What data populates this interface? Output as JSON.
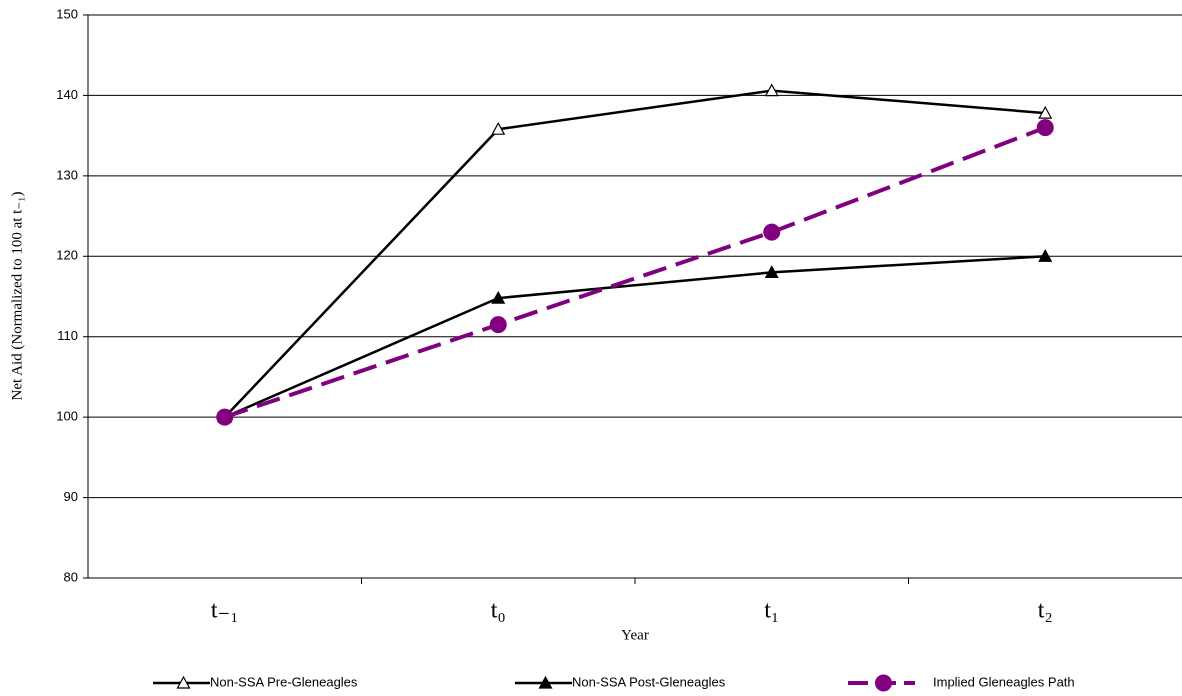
{
  "chart_data": {
    "type": "line",
    "ylabel": "Net Aid (Normalized to 100 at t₋₁)",
    "xlabel": "Year",
    "categories": [
      "t₋₁",
      "t₀",
      "t₁",
      "t₂"
    ],
    "series": [
      {
        "name": "Non-SSA Pre-Gleneagles",
        "color": "#000000",
        "dash": false,
        "marker": "triangle",
        "marker_fill": "#ffffff",
        "values": [
          100,
          135.8,
          140.6,
          137.8
        ]
      },
      {
        "name": "Non-SSA Post-Gleneagles",
        "color": "#000000",
        "dash": false,
        "marker": "triangle",
        "marker_fill": "#000000",
        "values": [
          100,
          114.8,
          118,
          120
        ]
      },
      {
        "name": "Implied Gleneagles Path",
        "color": "#800080",
        "dash": true,
        "marker": "circle",
        "marker_fill": "#800080",
        "values": [
          100,
          111.5,
          123,
          136
        ]
      }
    ],
    "ylim": [
      80,
      150
    ],
    "yticks": [
      80,
      90,
      100,
      110,
      120,
      130,
      140,
      150
    ],
    "grid": true,
    "legend": "bottom"
  }
}
